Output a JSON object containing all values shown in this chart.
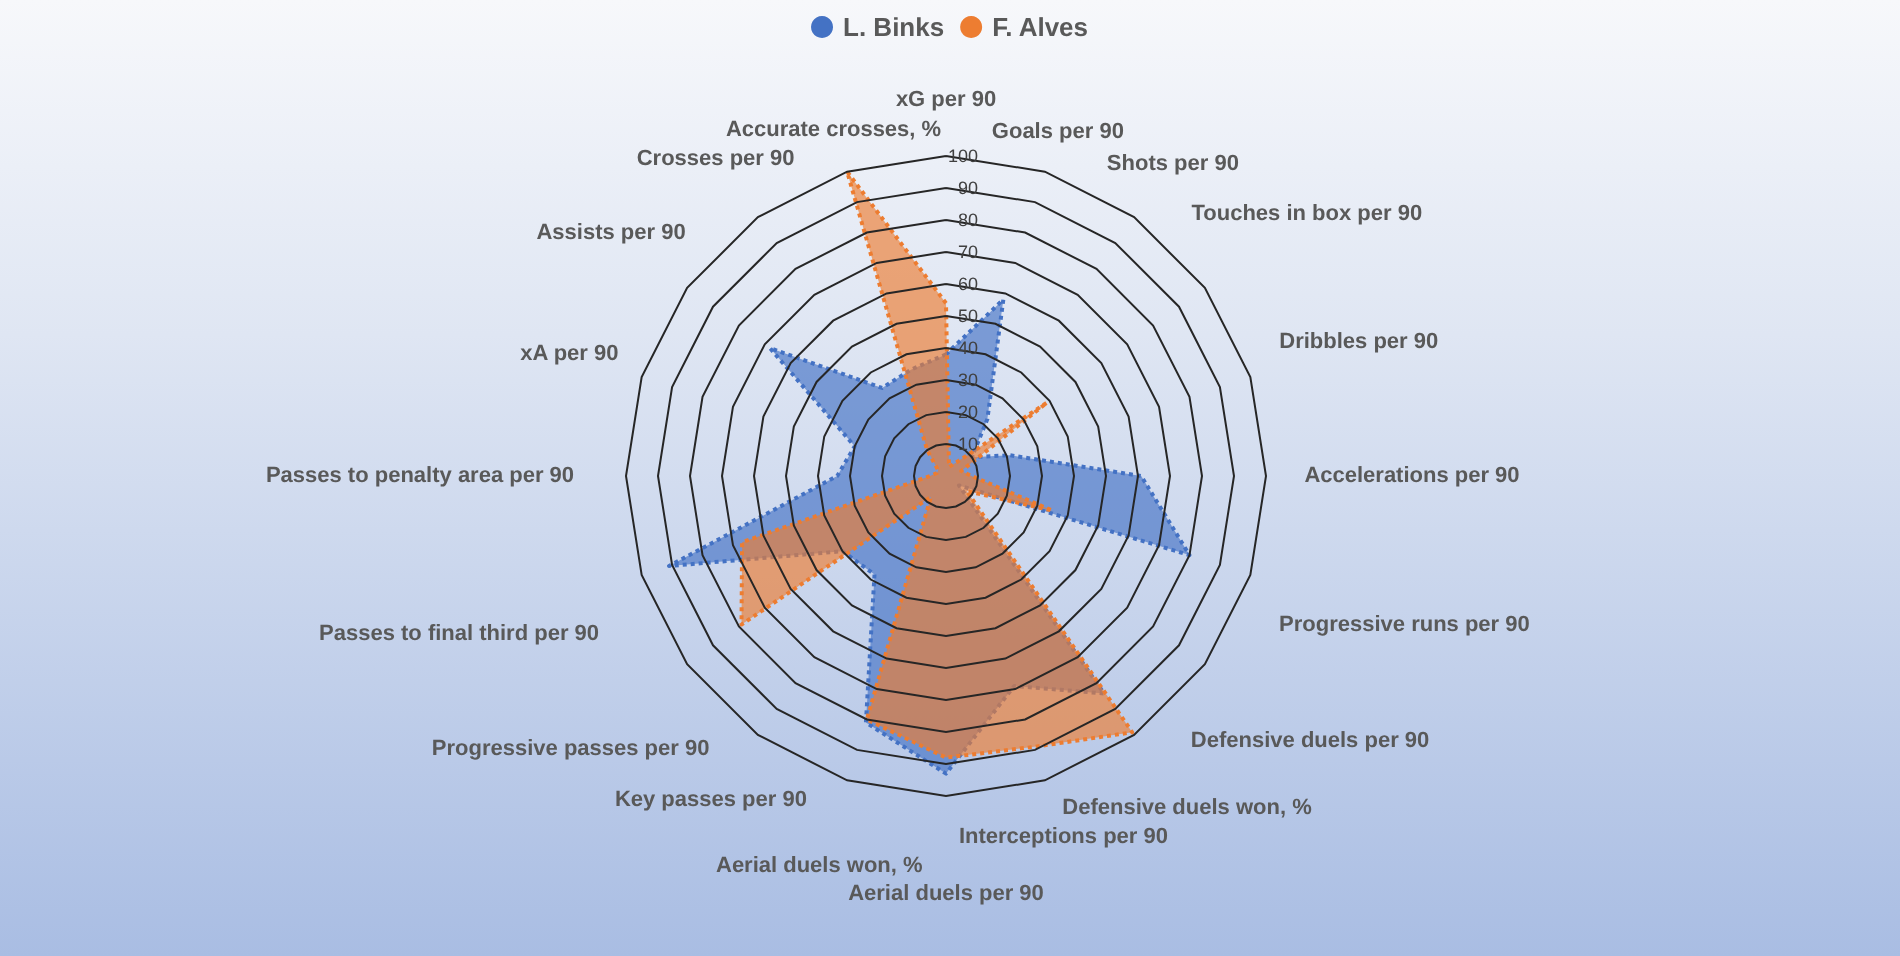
{
  "chart_data": {
    "type": "radar",
    "categories": [
      "xG per 90",
      "Goals per 90",
      "Shots per 90",
      "Touches in box per 90",
      "Dribbles per 90",
      "Accelerations per 90",
      "Progressive runs per 90",
      "Defensive duels per 90",
      "Defensive duels won, %",
      "Interceptions per 90",
      "Aerial duels per 90",
      "Aerial duels won, %",
      "Key passes per 90",
      "Progressive passes per 90",
      "Passes to final third per 90",
      "Passes to penalty area per 90",
      "xA per 90",
      "Assists per 90",
      "Crosses per 90",
      "Accurate crosses, %"
    ],
    "series": [
      {
        "name": "L. Binks",
        "color": "#4472c4",
        "values": [
          38,
          58,
          22,
          10,
          21,
          61,
          80,
          5,
          84,
          69,
          93,
          81,
          38,
          40,
          91,
          34,
          30,
          68,
          34,
          35
        ]
      },
      {
        "name": "F. Alves",
        "color": "#ed7d31",
        "values": [
          54,
          3,
          5,
          39,
          5,
          8,
          35,
          8,
          99,
          89,
          88,
          80,
          8,
          79,
          67,
          5,
          3,
          3,
          10,
          100
        ]
      }
    ],
    "ylim": [
      0,
      100
    ],
    "yticks": [
      10,
      20,
      30,
      40,
      50,
      60,
      70,
      80,
      90,
      100
    ],
    "legend": "top",
    "line_style": "dotted",
    "marker": "none",
    "grid": true
  }
}
